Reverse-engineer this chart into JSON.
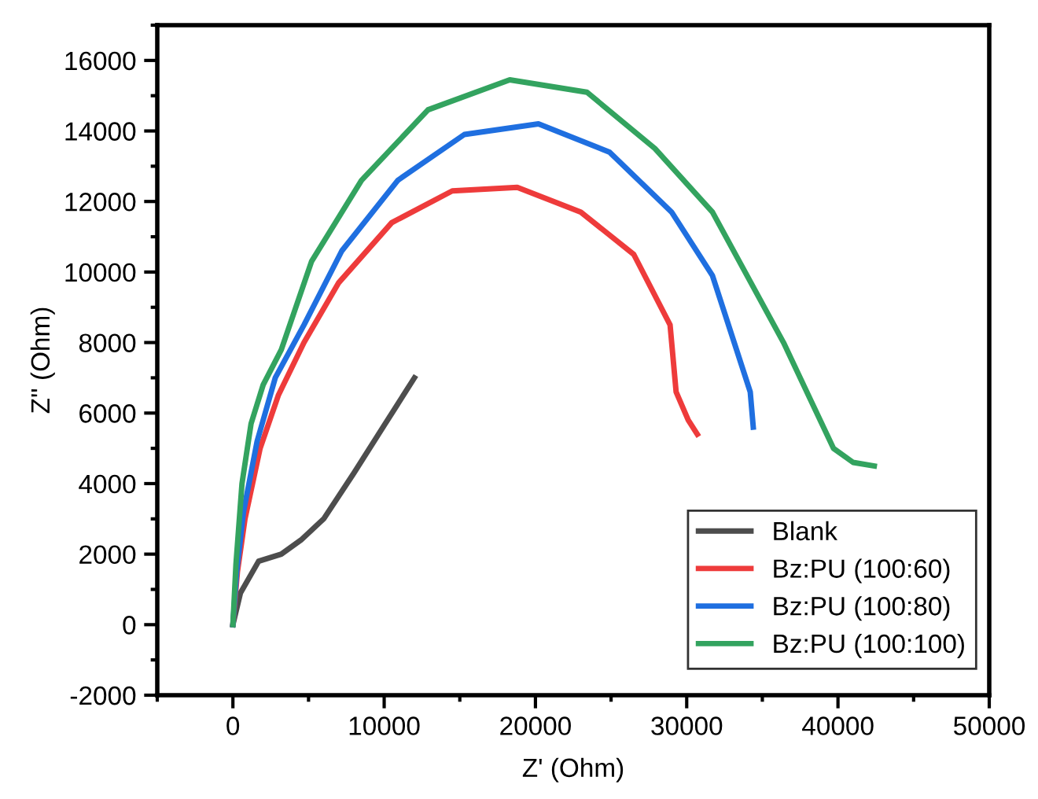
{
  "chart_data": {
    "type": "line",
    "xlabel": "Z' (Ohm)",
    "ylabel": "Z'' (Ohm)",
    "xlim": [
      -5000,
      50000
    ],
    "ylim": [
      -2000,
      17000
    ],
    "xticks": [
      0,
      10000,
      20000,
      30000,
      40000,
      50000
    ],
    "yticks": [
      -2000,
      0,
      2000,
      4000,
      6000,
      8000,
      10000,
      12000,
      14000,
      16000
    ],
    "grid": false,
    "legend": "bottom right",
    "marker": "none",
    "line_style": "solid",
    "series": [
      {
        "name": "Blank",
        "color": "#4d4d4d",
        "x": [
          0,
          500,
          1700,
          3200,
          4500,
          6000,
          8000,
          10000,
          12000
        ],
        "values": [
          0,
          900,
          1800,
          2000,
          2400,
          3000,
          4300,
          5650,
          7000
        ]
      },
      {
        "name": "Bz:PU (100:60)",
        "color": "#ee3b3b",
        "x": [
          0,
          300,
          800,
          1800,
          3000,
          4700,
          7000,
          10500,
          14500,
          18800,
          23000,
          26500,
          28900,
          29300,
          30100,
          30700
        ],
        "values": [
          0,
          1500,
          3000,
          5000,
          6500,
          8000,
          9700,
          11400,
          12300,
          12400,
          11700,
          10500,
          8500,
          6600,
          5800,
          5400
        ]
      },
      {
        "name": "Bz:PU (100:80)",
        "color": "#1f6fe0",
        "x": [
          0,
          250,
          700,
          1600,
          2800,
          4700,
          7200,
          10900,
          15300,
          20200,
          24900,
          29000,
          31700,
          34200,
          34400
        ],
        "values": [
          0,
          1500,
          3200,
          5200,
          7000,
          8500,
          10600,
          12600,
          13900,
          14200,
          13400,
          11700,
          9900,
          6600,
          5600
        ]
      },
      {
        "name": "Bz:PU (100:100)",
        "color": "#33a35f",
        "x": [
          0,
          200,
          600,
          1200,
          2000,
          3200,
          5200,
          8500,
          12900,
          18300,
          23400,
          27900,
          31700,
          36400,
          39700,
          41000,
          42400
        ],
        "values": [
          0,
          1700,
          4000,
          5700,
          6800,
          7800,
          10300,
          12600,
          14600,
          15450,
          15100,
          13500,
          11700,
          8000,
          5000,
          4600,
          4500
        ]
      }
    ]
  }
}
